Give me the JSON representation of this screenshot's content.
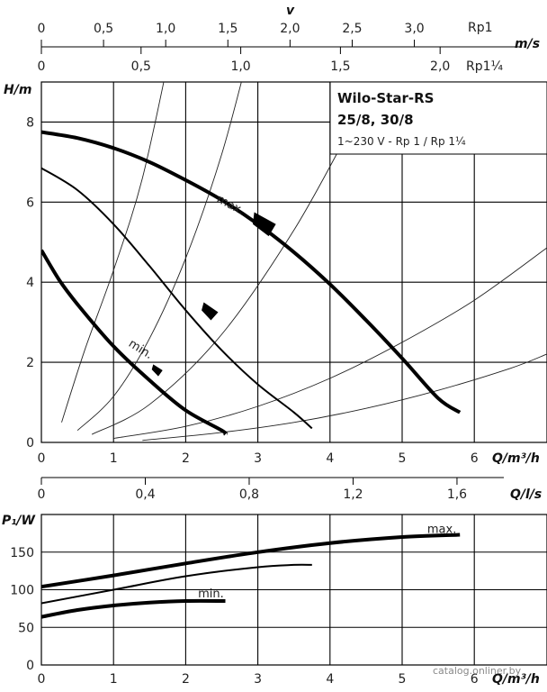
{
  "watermark": "catalog.onliner.by",
  "chart_data": [
    {
      "type": "line",
      "panel": "head-curve",
      "title_lines": [
        "Wilo-Star-RS",
        "25/8, 30/8",
        "1~230 V - Rp 1 / Rp 1¼"
      ],
      "xlabel": "Q/m³/h",
      "ylabel": "H/m",
      "xlim": [
        0,
        7
      ],
      "ylim": [
        0,
        9
      ],
      "x_ticks": [
        0,
        1,
        2,
        3,
        4,
        5,
        6
      ],
      "y_ticks": [
        0,
        2,
        4,
        6,
        8
      ],
      "secondary_top_axes": {
        "velocity_label": "v",
        "velocity_unit": "m/s",
        "rp1_label": "Rp1",
        "rp1_ticks": [
          "0",
          "0,5",
          "1,0",
          "1,5",
          "2,0",
          "2,5",
          "3,0"
        ],
        "rp1_q_per_unit": 1.723,
        "rp114_label": "Rp1¼",
        "rp114_ticks": [
          "0",
          "0,5",
          "1,0",
          "1,5",
          "2,0"
        ],
        "rp114_q_per_unit": 2.763
      },
      "series": [
        {
          "name": "max.",
          "x": [
            0,
            0.5,
            1,
            1.5,
            2,
            2.5,
            3,
            3.5,
            4,
            4.5,
            5,
            5.5,
            5.8
          ],
          "y": [
            7.75,
            7.6,
            7.35,
            7.0,
            6.55,
            6.05,
            5.45,
            4.75,
            3.95,
            3.05,
            2.1,
            1.1,
            0.75
          ]
        },
        {
          "name": "",
          "x": [
            0,
            0.5,
            1,
            1.5,
            2,
            2.5,
            3,
            3.5,
            3.75
          ],
          "y": [
            6.85,
            6.3,
            5.45,
            4.4,
            3.3,
            2.3,
            1.45,
            0.75,
            0.35
          ]
        },
        {
          "name": "min.",
          "x": [
            0,
            0.25,
            0.5,
            1,
            1.5,
            2,
            2.5,
            2.55
          ],
          "y": [
            4.8,
            4.05,
            3.45,
            2.4,
            1.55,
            0.8,
            0.3,
            0.2
          ]
        }
      ],
      "system_curves": [
        {
          "x": [
            0.28,
            0.6,
            1,
            1.4,
            1.8
          ],
          "y": [
            0.5,
            2.3,
            4.3,
            6.6,
            9.9
          ]
        },
        {
          "x": [
            0.5,
            1,
            1.5,
            2,
            2.5,
            2.9
          ],
          "y": [
            0.3,
            1.15,
            2.6,
            4.6,
            7.2,
            9.9
          ]
        },
        {
          "x": [
            0.7,
            1.5,
            2.5,
            3.5,
            4.3
          ],
          "y": [
            0.2,
            0.95,
            2.7,
            5.3,
            7.9
          ]
        },
        {
          "x": [
            1,
            2,
            3,
            4,
            5,
            6,
            7
          ],
          "y": [
            0.1,
            0.4,
            0.9,
            1.6,
            2.5,
            3.55,
            4.85
          ]
        },
        {
          "x": [
            1.4,
            2.5,
            3.5,
            4.5,
            5.5,
            6.5,
            7
          ],
          "y": [
            0.05,
            0.25,
            0.5,
            0.85,
            1.3,
            1.85,
            2.2
          ]
        }
      ],
      "annotations": [
        "max.",
        "min."
      ]
    },
    {
      "type": "line",
      "panel": "power-curve",
      "xlabel": "Q/m³/h",
      "ylabel": "P₁/W",
      "xlim": [
        0,
        7
      ],
      "ylim": [
        0,
        200
      ],
      "x_ticks": [
        0,
        1,
        2,
        3,
        4,
        5,
        6
      ],
      "y_ticks": [
        0,
        50,
        100,
        150
      ],
      "secondary_axis": {
        "label": "Q/l/s",
        "ticks": [
          "0",
          "0,4",
          "0,8",
          "1,2",
          "1,6"
        ],
        "q_per_unit": 3.6
      },
      "series": [
        {
          "name": "max.",
          "x": [
            0,
            1,
            2,
            3,
            4,
            5,
            5.8
          ],
          "y": [
            104,
            119,
            135,
            150,
            162,
            170,
            173
          ]
        },
        {
          "name": "",
          "x": [
            0,
            1,
            2,
            3,
            3.5,
            3.75
          ],
          "y": [
            82,
            100,
            118,
            130,
            133,
            133
          ]
        },
        {
          "name": "min.",
          "x": [
            0,
            0.5,
            1,
            1.5,
            2,
            2.55
          ],
          "y": [
            64,
            73,
            79,
            83,
            85,
            85
          ]
        }
      ],
      "annotations": [
        "max.",
        "min."
      ]
    }
  ]
}
